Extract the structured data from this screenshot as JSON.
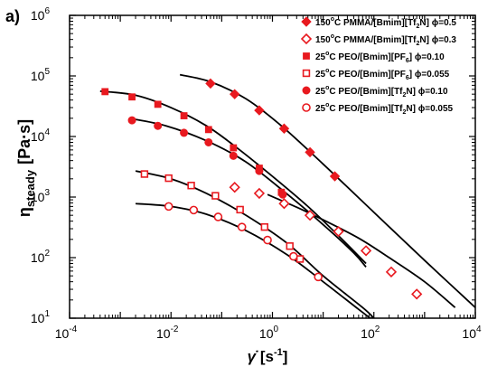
{
  "panel_label": "a)",
  "chart_data": {
    "type": "scatter",
    "x_scale": "log",
    "y_scale": "log",
    "xlim": [
      0.0001,
      10000
    ],
    "ylim": [
      10,
      1000000
    ],
    "x_ticks": [
      {
        "value": 0.0001,
        "base": "10",
        "exp": "-4"
      },
      {
        "value": 0.01,
        "base": "10",
        "exp": "-2"
      },
      {
        "value": 1,
        "base": "10",
        "exp": "0"
      },
      {
        "value": 100,
        "base": "10",
        "exp": "2"
      },
      {
        "value": 10000,
        "base": "10",
        "exp": "4"
      }
    ],
    "y_ticks": [
      {
        "value": 10,
        "base": "10",
        "exp": "1"
      },
      {
        "value": 100,
        "base": "10",
        "exp": "2"
      },
      {
        "value": 1000,
        "base": "10",
        "exp": "3"
      },
      {
        "value": 10000,
        "base": "10",
        "exp": "4"
      },
      {
        "value": 100000,
        "base": "10",
        "exp": "5"
      },
      {
        "value": 1000000,
        "base": "10",
        "exp": "6"
      }
    ],
    "xlabel": {
      "symbol": "γ̇",
      "unit": "[s",
      "unit_exp": "-1",
      "unit_end": "]"
    },
    "ylabel": {
      "symbol": "η",
      "sub": "steady",
      "unit": "[Pa·s]"
    },
    "legend_position": "top-right",
    "marker_color": "#e8191f",
    "series": [
      {
        "legend": {
          "a": "150",
          "sup": "o",
          "b": "C PMMA/[Bmim][Tf",
          "sub": "2",
          "c": "N] ϕ=0.5"
        },
        "marker": "diamond-filled",
        "points": [
          [
            0.06,
            75000
          ],
          [
            0.18,
            50000
          ],
          [
            0.55,
            27000
          ],
          [
            1.7,
            13500
          ],
          [
            5.5,
            5500
          ],
          [
            17,
            2200
          ]
        ],
        "fit": [
          [
            0.015,
            105000
          ],
          [
            0.06,
            80000
          ],
          [
            0.3,
            42000
          ],
          [
            1.5,
            15000
          ],
          [
            10,
            3500
          ],
          [
            100,
            560
          ],
          [
            1000,
            90
          ],
          [
            10000,
            15
          ]
        ]
      },
      {
        "legend": {
          "a": "150",
          "sup": "o",
          "b": "C PMMA/[Bmim][Tf",
          "sub": "2",
          "c": "N] ϕ=0.3"
        },
        "marker": "diamond-open",
        "points": [
          [
            0.18,
            1450
          ],
          [
            0.55,
            1150
          ],
          [
            1.7,
            780
          ],
          [
            5.5,
            500
          ],
          [
            20,
            270
          ],
          [
            70,
            130
          ],
          [
            220,
            58
          ],
          [
            700,
            25
          ]
        ],
        "fit": [
          [
            0.8,
            1100
          ],
          [
            3,
            680
          ],
          [
            10,
            420
          ],
          [
            50,
            210
          ],
          [
            200,
            100
          ],
          [
            1000,
            40
          ],
          [
            4000,
            15
          ]
        ]
      },
      {
        "legend": {
          "a": "25",
          "sup": "o",
          "b": "C PEO/[Bmim][PF",
          "sub": "6",
          "c": "] ϕ=0.10"
        },
        "marker": "square-filled",
        "points": [
          [
            0.0005,
            55000
          ],
          [
            0.0017,
            45000
          ],
          [
            0.0055,
            34000
          ],
          [
            0.018,
            22000
          ],
          [
            0.055,
            13000
          ],
          [
            0.17,
            6500
          ],
          [
            0.55,
            3000
          ],
          [
            1.5,
            1200
          ]
        ],
        "fit": [
          [
            0.0004,
            56000
          ],
          [
            0.002,
            48000
          ],
          [
            0.01,
            30000
          ],
          [
            0.05,
            15000
          ],
          [
            0.2,
            6500
          ],
          [
            1,
            2200
          ],
          [
            5,
            700
          ],
          [
            20,
            230
          ],
          [
            70,
            80
          ]
        ]
      },
      {
        "legend": {
          "a": "25",
          "sup": "o",
          "b": "C PEO/[Bmim][PF",
          "sub": "6",
          "c": "] ϕ=0.055"
        },
        "marker": "square-open",
        "points": [
          [
            0.003,
            2400
          ],
          [
            0.009,
            2050
          ],
          [
            0.025,
            1550
          ],
          [
            0.075,
            1050
          ],
          [
            0.23,
            620
          ],
          [
            0.7,
            320
          ],
          [
            2.2,
            155
          ],
          [
            3.5,
            95
          ]
        ],
        "fit": [
          [
            0.002,
            2700
          ],
          [
            0.01,
            2000
          ],
          [
            0.05,
            1150
          ],
          [
            0.3,
            500
          ],
          [
            2,
            170
          ],
          [
            10,
            50
          ],
          [
            60,
            15
          ],
          [
            100,
            10
          ]
        ]
      },
      {
        "legend": {
          "a": "25",
          "sup": "o",
          "b": "C PEO/[Bmim][Tf",
          "sub": "2",
          "c": "N] ϕ=0.10"
        },
        "marker": "circle-filled",
        "points": [
          [
            0.0017,
            18500
          ],
          [
            0.0055,
            15000
          ],
          [
            0.018,
            11500
          ],
          [
            0.055,
            8000
          ],
          [
            0.17,
            4800
          ],
          [
            0.55,
            2700
          ],
          [
            1.6,
            1100
          ]
        ],
        "fit": [
          [
            0.0015,
            20000
          ],
          [
            0.008,
            15000
          ],
          [
            0.05,
            8500
          ],
          [
            0.3,
            3800
          ],
          [
            2,
            1100
          ],
          [
            10,
            350
          ],
          [
            40,
            120
          ],
          [
            70,
            70
          ]
        ]
      },
      {
        "legend": {
          "a": "25",
          "sup": "o",
          "b": "C PEO/[Bmim][Tf",
          "sub": "2",
          "c": "N] ϕ=0.055"
        },
        "marker": "circle-open",
        "points": [
          [
            0.009,
            700
          ],
          [
            0.028,
            610
          ],
          [
            0.085,
            470
          ],
          [
            0.25,
            320
          ],
          [
            0.8,
            195
          ],
          [
            2.6,
            105
          ],
          [
            8,
            48
          ]
        ],
        "fit": [
          [
            0.002,
            780
          ],
          [
            0.01,
            700
          ],
          [
            0.05,
            520
          ],
          [
            0.3,
            280
          ],
          [
            2,
            110
          ],
          [
            10,
            40
          ],
          [
            50,
            14
          ],
          [
            100,
            9
          ]
        ]
      }
    ]
  }
}
